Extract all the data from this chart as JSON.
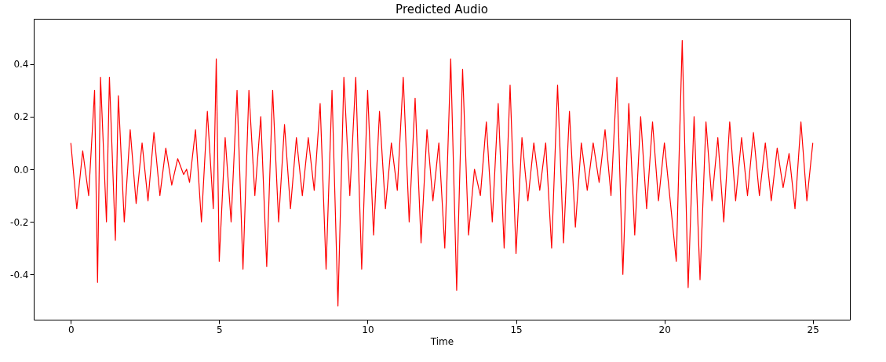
{
  "chart_data": {
    "type": "line",
    "title": "Predicted Audio",
    "xlabel": "Time",
    "x": [
      0,
      0.2,
      0.4,
      0.6,
      0.8,
      0.9,
      1.0,
      1.2,
      1.3,
      1.5,
      1.6,
      1.8,
      2.0,
      2.2,
      2.4,
      2.6,
      2.8,
      3.0,
      3.2,
      3.4,
      3.6,
      3.8,
      3.9,
      4.0,
      4.2,
      4.4,
      4.6,
      4.8,
      4.9,
      5.0,
      5.2,
      5.4,
      5.6,
      5.8,
      6.0,
      6.2,
      6.4,
      6.6,
      6.8,
      7.0,
      7.2,
      7.4,
      7.6,
      7.8,
      8.0,
      8.2,
      8.4,
      8.6,
      8.8,
      9.0,
      9.2,
      9.4,
      9.6,
      9.8,
      10.0,
      10.2,
      10.4,
      10.6,
      10.8,
      11.0,
      11.2,
      11.4,
      11.6,
      11.8,
      12.0,
      12.2,
      12.4,
      12.6,
      12.8,
      13.0,
      13.2,
      13.4,
      13.6,
      13.8,
      14.0,
      14.2,
      14.4,
      14.6,
      14.8,
      15.0,
      15.2,
      15.4,
      15.6,
      15.8,
      16.0,
      16.2,
      16.4,
      16.6,
      16.8,
      17.0,
      17.2,
      17.4,
      17.6,
      17.8,
      18.0,
      18.2,
      18.4,
      18.6,
      18.8,
      19.0,
      19.2,
      19.4,
      19.6,
      19.8,
      20.0,
      20.4,
      20.6,
      20.8,
      21.0,
      21.2,
      21.4,
      21.6,
      21.8,
      22.0,
      22.2,
      22.4,
      22.6,
      22.8,
      23.0,
      23.2,
      23.4,
      23.6,
      23.8,
      24.0,
      24.2,
      24.4,
      24.6,
      24.8,
      25.0
    ],
    "series": [
      {
        "color": "#ff0000",
        "values": [
          0.1,
          -0.15,
          0.07,
          -0.1,
          0.3,
          -0.43,
          0.35,
          -0.2,
          0.35,
          -0.27,
          0.28,
          -0.2,
          0.15,
          -0.13,
          0.1,
          -0.12,
          0.14,
          -0.1,
          0.08,
          -0.06,
          0.04,
          -0.02,
          0.0,
          -0.05,
          0.15,
          -0.2,
          0.22,
          -0.15,
          0.42,
          -0.35,
          0.12,
          -0.2,
          0.3,
          -0.38,
          0.3,
          -0.1,
          0.2,
          -0.37,
          0.3,
          -0.2,
          0.17,
          -0.15,
          0.12,
          -0.1,
          0.12,
          -0.08,
          0.25,
          -0.38,
          0.3,
          -0.52,
          0.35,
          -0.1,
          0.35,
          -0.38,
          0.3,
          -0.25,
          0.22,
          -0.15,
          0.1,
          -0.08,
          0.35,
          -0.2,
          0.27,
          -0.28,
          0.15,
          -0.12,
          0.1,
          -0.3,
          0.42,
          -0.46,
          0.38,
          -0.25,
          0.0,
          -0.1,
          0.18,
          -0.2,
          0.25,
          -0.3,
          0.32,
          -0.32,
          0.12,
          -0.12,
          0.1,
          -0.08,
          0.1,
          -0.3,
          0.32,
          -0.28,
          0.22,
          -0.22,
          0.1,
          -0.08,
          0.1,
          -0.05,
          0.15,
          -0.1,
          0.35,
          -0.4,
          0.25,
          -0.25,
          0.2,
          -0.15,
          0.18,
          -0.12,
          0.1,
          -0.35,
          0.49,
          -0.45,
          0.2,
          -0.42,
          0.18,
          -0.12,
          0.12,
          -0.2,
          0.18,
          -0.12,
          0.12,
          -0.1,
          0.14,
          -0.1,
          0.1,
          -0.12,
          0.08,
          -0.07,
          0.06,
          -0.15,
          0.18,
          -0.12,
          0.1
        ]
      }
    ],
    "xlim": [
      -1.25,
      26.25
    ],
    "xticks": [
      0,
      5,
      10,
      15,
      20,
      25
    ],
    "ylim": [
      -0.572,
      0.572
    ],
    "yticks": [
      -0.4,
      -0.2,
      {
        "value": 0,
        "label": "0.0"
      },
      0.2,
      0.4
    ],
    "grid": false,
    "marker": "none",
    "line_style": "solid"
  }
}
